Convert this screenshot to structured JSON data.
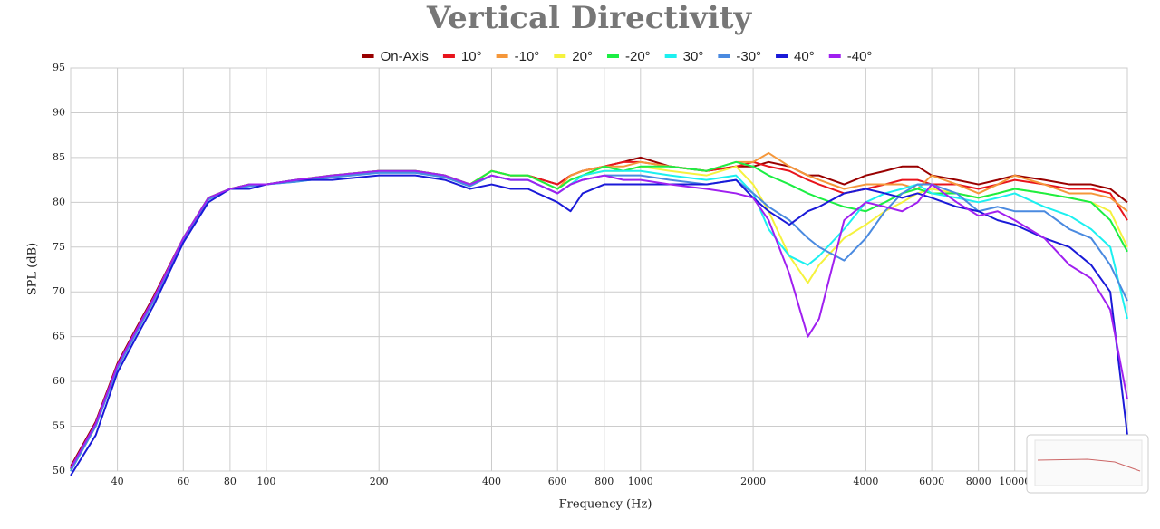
{
  "chart_data": {
    "type": "line",
    "title": "Vertical Directivity",
    "x_label": "Frequency (Hz)",
    "y_label": "SPL (dB)",
    "xscale": "log",
    "grid": true,
    "legend": "top",
    "xlim": [
      30,
      20000
    ],
    "ylim": [
      50,
      95
    ],
    "xticks": [
      40,
      60,
      80,
      100,
      200,
      400,
      600,
      800,
      1000,
      2000,
      4000,
      6000,
      8000,
      10000
    ],
    "yticks": [
      50,
      55,
      60,
      65,
      70,
      75,
      80,
      85,
      90,
      95
    ],
    "x": [
      30,
      35,
      40,
      45,
      50,
      60,
      70,
      80,
      90,
      100,
      120,
      150,
      200,
      250,
      300,
      350,
      400,
      450,
      500,
      600,
      650,
      700,
      800,
      900,
      1000,
      1200,
      1500,
      1800,
      2000,
      2200,
      2500,
      2800,
      3000,
      3500,
      4000,
      4500,
      5000,
      5500,
      6000,
      7000,
      8000,
      9000,
      10000,
      12000,
      14000,
      16000,
      18000,
      20000
    ],
    "series": [
      {
        "name": "On-Axis",
        "color": "#990000",
        "values": [
          50.5,
          55.5,
          62,
          66,
          69.5,
          76,
          80.5,
          81.5,
          82,
          82,
          82.5,
          83,
          83.5,
          83.5,
          83,
          82,
          83.5,
          83,
          83,
          82,
          83,
          83.5,
          84,
          84.5,
          85,
          84,
          83.5,
          84,
          84,
          84.5,
          84,
          83,
          83,
          82,
          83,
          83.5,
          84,
          84,
          83,
          82.5,
          82,
          82.5,
          83,
          82.5,
          82,
          82,
          81.5,
          80
        ]
      },
      {
        "name": "10°",
        "color": "#e8141c",
        "values": [
          50.3,
          55.3,
          61.8,
          65.8,
          69.3,
          76,
          80.5,
          81.5,
          82,
          82,
          82.5,
          83,
          83.5,
          83.5,
          83,
          82,
          83.5,
          83,
          83,
          82,
          83,
          83.5,
          84,
          84.5,
          84.5,
          84,
          83.5,
          84,
          84.5,
          84,
          83.5,
          82.5,
          82,
          81,
          81.5,
          82,
          82.5,
          82.5,
          82,
          82,
          81.5,
          82,
          82.5,
          82,
          81.5,
          81.5,
          81,
          78
        ]
      },
      {
        "name": "-10°",
        "color": "#f5973a",
        "values": [
          50.2,
          55.2,
          61.7,
          65.7,
          69.2,
          76,
          80.5,
          81.5,
          82,
          82,
          82.5,
          83,
          83.5,
          83.5,
          83,
          82,
          83.5,
          83,
          83,
          81.5,
          83,
          83.5,
          84,
          84,
          84.5,
          84,
          83.5,
          84.5,
          84.5,
          85.5,
          84,
          83,
          82.5,
          81.5,
          82,
          82,
          82,
          81.5,
          83,
          82,
          81,
          82,
          83,
          82,
          81,
          81,
          80.5,
          79
        ]
      },
      {
        "name": "20°",
        "color": "#f5f23e",
        "values": [
          50,
          55,
          61.5,
          65.5,
          69,
          76,
          80.5,
          81.5,
          82,
          82,
          82.5,
          83,
          83.5,
          83.5,
          83,
          82,
          83.5,
          83,
          83,
          81.5,
          82.5,
          83,
          83.5,
          83.5,
          84,
          83.5,
          83,
          84,
          82,
          79,
          74,
          71,
          73,
          76,
          77.5,
          79,
          80,
          81,
          81.5,
          81,
          80.5,
          81,
          81.5,
          81,
          80.5,
          80,
          79,
          75
        ]
      },
      {
        "name": "-20°",
        "color": "#1bee43",
        "values": [
          50.2,
          55.2,
          61.7,
          65.7,
          69.2,
          76,
          80.5,
          81.5,
          82,
          82,
          82.5,
          83,
          83.5,
          83.5,
          83,
          82,
          83.5,
          83,
          83,
          81.5,
          82.5,
          83,
          84,
          83.5,
          84,
          84,
          83.5,
          84.5,
          84,
          83,
          82,
          81,
          80.5,
          79.5,
          79,
          80,
          81,
          81.5,
          81,
          81,
          80.5,
          81,
          81.5,
          81,
          80.5,
          80,
          78,
          74.5
        ]
      },
      {
        "name": "30°",
        "color": "#1cf0f0",
        "values": [
          50,
          55,
          61.5,
          65.5,
          69,
          75.8,
          80.3,
          81.5,
          81.8,
          82,
          82.3,
          82.8,
          83.3,
          83.3,
          82.8,
          81.8,
          83,
          82.5,
          82.5,
          81,
          82,
          83,
          83.5,
          83.5,
          83.5,
          83,
          82.5,
          83,
          81,
          77,
          74,
          73,
          74,
          77,
          80,
          81,
          81.5,
          82,
          81,
          80.5,
          80,
          80.5,
          81,
          79.5,
          78.5,
          77,
          75,
          67
        ]
      },
      {
        "name": "-30°",
        "color": "#4a8ae0",
        "values": [
          50,
          55,
          61.5,
          65.5,
          69,
          75.8,
          80.3,
          81.5,
          81.8,
          82,
          82.3,
          82.8,
          83.3,
          83.3,
          82.8,
          81.8,
          83,
          82.5,
          82.5,
          81,
          82,
          82.5,
          83,
          83,
          83,
          82.5,
          82,
          82.5,
          81,
          79.5,
          78,
          76,
          75,
          73.5,
          76,
          79,
          81,
          82,
          82,
          81,
          79,
          79.5,
          79,
          79,
          77,
          76,
          73,
          69
        ]
      },
      {
        "name": "40°",
        "color": "#1a1ad8",
        "values": [
          49.5,
          54,
          61,
          65,
          68.5,
          75.5,
          80,
          81.5,
          81.5,
          82,
          82.5,
          82.5,
          83,
          83,
          82.5,
          81.5,
          82,
          81.5,
          81.5,
          80,
          79,
          81,
          82,
          82,
          82,
          82,
          82,
          82.5,
          80.5,
          79,
          77.5,
          79,
          79.5,
          81,
          81.5,
          81,
          80.5,
          81,
          80.5,
          79.5,
          79,
          78,
          77.5,
          76,
          75,
          73,
          70,
          54
        ]
      },
      {
        "name": "-40°",
        "color": "#a020f0",
        "values": [
          50.3,
          55.3,
          61.8,
          65.8,
          69.3,
          76,
          80.5,
          81.5,
          82,
          82,
          82.5,
          83,
          83.5,
          83.5,
          83,
          82,
          83,
          82.5,
          82.5,
          81,
          82,
          82.5,
          83,
          82.5,
          82.5,
          82,
          81.5,
          81,
          80.5,
          78,
          72,
          65,
          67,
          78,
          80,
          79.5,
          79,
          80,
          82,
          80,
          78.5,
          79,
          78,
          76,
          73,
          71.5,
          68,
          58
        ]
      }
    ]
  }
}
